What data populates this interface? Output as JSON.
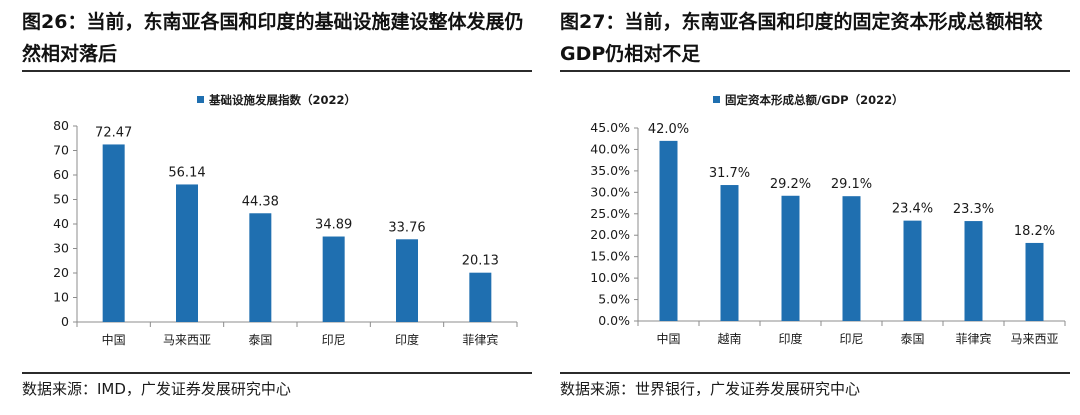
{
  "colors": {
    "bar": "#1f6fb0",
    "axis": "#8c8c8c",
    "text": "#1a1a1a"
  },
  "chart_data": [
    {
      "type": "bar",
      "figure_title": "图26：当前，东南亚各国和印度的基础设施建设整体发展仍然相对落后",
      "series_name": "基础设施发展指数（2022）",
      "categories": [
        "中国",
        "马来西亚",
        "泰国",
        "印尼",
        "印度",
        "菲律宾"
      ],
      "values": [
        72.47,
        56.14,
        44.38,
        34.89,
        33.76,
        20.13
      ],
      "value_labels": [
        "72.47",
        "56.14",
        "44.38",
        "34.89",
        "33.76",
        "20.13"
      ],
      "ylim": [
        0,
        80
      ],
      "yticks": [
        "0",
        "10",
        "20",
        "30",
        "40",
        "50",
        "60",
        "70",
        "80"
      ],
      "xlabel": "",
      "ylabel": "",
      "legend": "top-center",
      "grid": false,
      "source": "数据来源：IMD，广发证券发展研究中心"
    },
    {
      "type": "bar",
      "figure_title": "图27：当前，东南亚各国和印度的固定资本形成总额相较GDP仍相对不足",
      "series_name": "固定资本形成总额/GDP（2022）",
      "categories": [
        "中国",
        "越南",
        "印度",
        "印尼",
        "泰国",
        "菲律宾",
        "马来西亚"
      ],
      "values": [
        42.0,
        31.7,
        29.2,
        29.1,
        23.4,
        23.3,
        18.2
      ],
      "value_labels": [
        "42.0%",
        "31.7%",
        "29.2%",
        "29.1%",
        "23.4%",
        "23.3%",
        "18.2%"
      ],
      "ylim": [
        0,
        45
      ],
      "yticks": [
        "0.0%",
        "5.0%",
        "10.0%",
        "15.0%",
        "20.0%",
        "25.0%",
        "30.0%",
        "35.0%",
        "40.0%",
        "45.0%"
      ],
      "xlabel": "",
      "ylabel": "",
      "legend": "top-center",
      "grid": false,
      "source": "数据来源：世界银行，广发证券发展研究中心"
    }
  ]
}
